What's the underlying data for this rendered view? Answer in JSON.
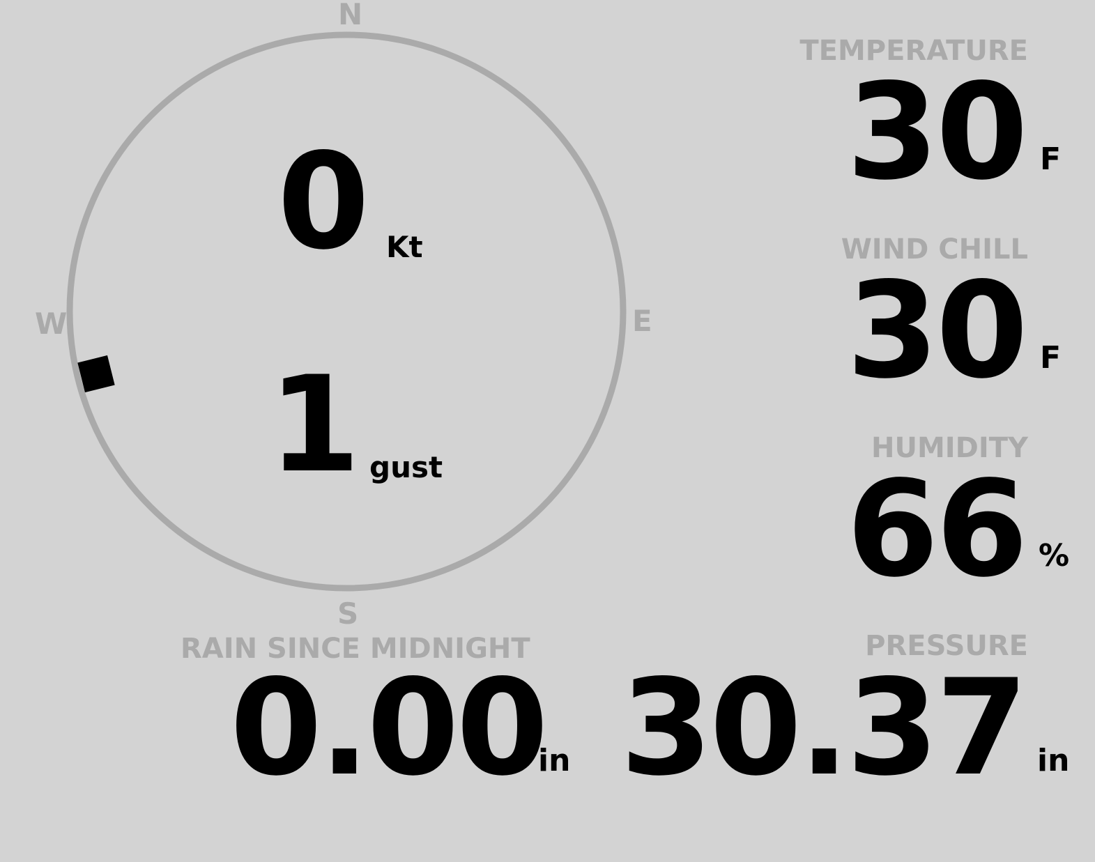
{
  "compass": {
    "north": "N",
    "south": "S",
    "east": "E",
    "west": "W",
    "wind_direction_deg": 256,
    "ring_color": "#aaaaaa",
    "pointer_color": "#000000"
  },
  "wind": {
    "speed": "0",
    "speed_unit": "Kt",
    "gust": "1",
    "gust_unit": "gust"
  },
  "temperature": {
    "label": "TEMPERATURE",
    "value": "30",
    "unit": "F"
  },
  "wind_chill": {
    "label": "WIND CHILL",
    "value": "30",
    "unit": "F"
  },
  "humidity": {
    "label": "HUMIDITY",
    "value": "66",
    "unit": "%"
  },
  "rain": {
    "label": "RAIN SINCE MIDNIGHT",
    "value": "0.00",
    "unit": "in"
  },
  "pressure": {
    "label": "PRESSURE",
    "value": "30.37",
    "unit": "in"
  },
  "colors": {
    "background": "#d3d3d3",
    "label": "#aaaaaa",
    "value": "#000000"
  }
}
